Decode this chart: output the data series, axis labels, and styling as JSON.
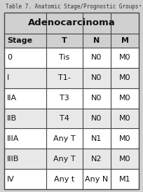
{
  "title": "Table 7. Anatomic Stage/Prognostic Groups",
  "title_superscript": "a",
  "section_header": "Adenocarcinoma",
  "col_headers": [
    "Stage",
    "T",
    "N",
    "M"
  ],
  "rows": [
    [
      "0",
      "Tis",
      "N0",
      "M0"
    ],
    [
      "I",
      "T1-",
      "N0",
      "M0"
    ],
    [
      "IIA",
      "T3",
      "N0",
      "M0"
    ],
    [
      "IIB",
      "T4",
      "N0",
      "M0"
    ],
    [
      "IIIA",
      "Any T",
      "N1",
      "M0"
    ],
    [
      "IIIB",
      "Any T",
      "N2",
      "M0"
    ],
    [
      "IV",
      "Any t",
      "Any N",
      "M1"
    ]
  ],
  "bg_outer": "#d0d0d0",
  "bg_white": "#ffffff",
  "bg_header_section": "#d0d0d0",
  "bg_col_header": "#d0d0d0",
  "bg_row_even": "#ffffff",
  "bg_row_odd": "#e8e8e8",
  "border_color": "#444444",
  "title_fontsize": 5.5,
  "header_fontsize": 9.5,
  "col_header_fontsize": 8.0,
  "cell_fontsize": 8.0,
  "title_color": "#333333",
  "cell_color": "#111111"
}
